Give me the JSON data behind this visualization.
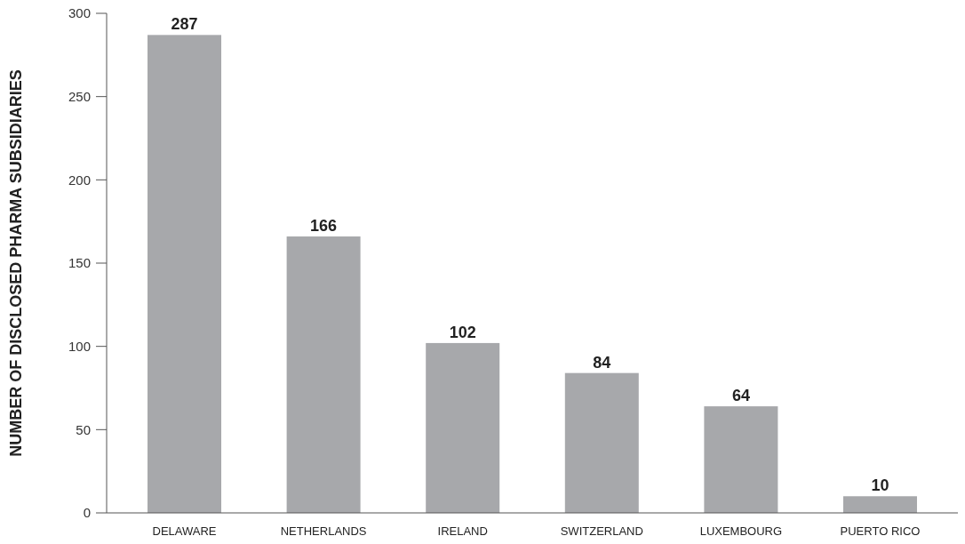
{
  "chart_data": {
    "type": "bar",
    "ylabel": "NUMBER OF DISCLOSED PHARMA SUBSIDIARIES",
    "categories": [
      "DELAWARE",
      "NETHERLANDS",
      "IRELAND",
      "SWITZERLAND",
      "LUXEMBOURG",
      "PUERTO RICO"
    ],
    "values": [
      287,
      166,
      102,
      84,
      64,
      10
    ],
    "color": "#a7a8ab",
    "ylim": [
      0,
      300
    ],
    "yticks": [
      0,
      50,
      100,
      150,
      200,
      250,
      300
    ],
    "grid": false,
    "data_labels": true
  }
}
